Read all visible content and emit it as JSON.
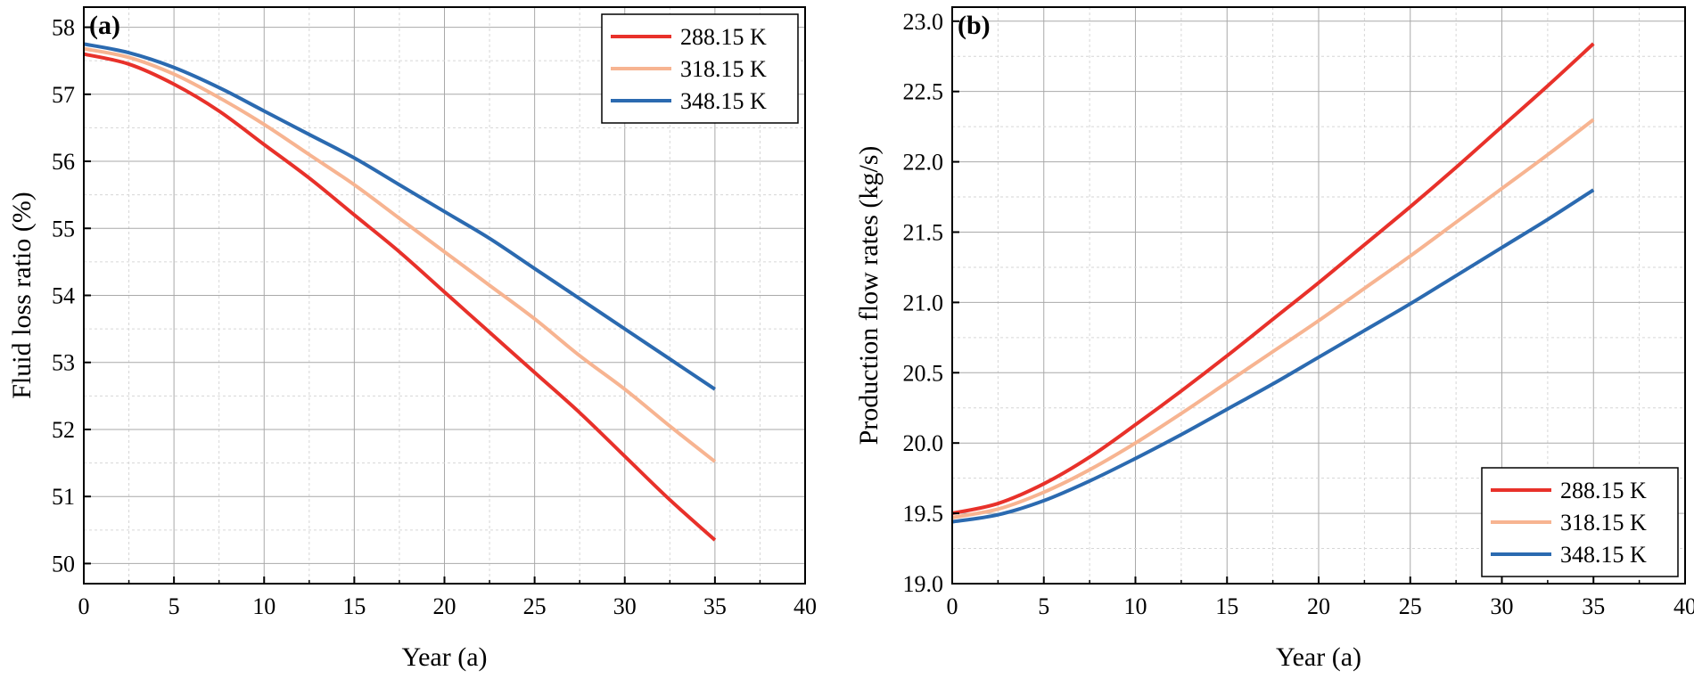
{
  "chart_data": [
    {
      "type": "line",
      "panel_label": "(a)",
      "xlabel": "Year (a)",
      "ylabel": "Fluid loss ratio (%)",
      "xlim": [
        0,
        40
      ],
      "ylim": [
        49.7,
        58.3
      ],
      "xticks": [
        0,
        5,
        10,
        15,
        20,
        25,
        30,
        35,
        40
      ],
      "yticks": [
        50,
        51,
        52,
        53,
        54,
        55,
        56,
        57,
        58
      ],
      "ytick_labels": [
        "50",
        "51",
        "52",
        "53",
        "54",
        "55",
        "56",
        "57",
        "58"
      ],
      "grid": true,
      "legend_position": "top-right",
      "x": [
        0,
        2.5,
        5,
        7.5,
        10,
        12.5,
        15,
        17.5,
        20,
        22.5,
        25,
        27.5,
        30,
        32.5,
        35
      ],
      "series": [
        {
          "name": "288.15 K",
          "color": "#e8312a",
          "values": [
            57.6,
            57.45,
            57.15,
            56.75,
            56.25,
            55.75,
            55.2,
            54.65,
            54.05,
            53.45,
            52.85,
            52.25,
            51.6,
            50.95,
            50.35
          ]
        },
        {
          "name": "318.15 K",
          "color": "#f7b491",
          "values": [
            57.68,
            57.55,
            57.3,
            56.95,
            56.55,
            56.1,
            55.65,
            55.15,
            54.65,
            54.15,
            53.65,
            53.1,
            52.6,
            52.05,
            51.52
          ]
        },
        {
          "name": "348.15 K",
          "color": "#2b6ab0",
          "values": [
            57.75,
            57.62,
            57.4,
            57.1,
            56.75,
            56.4,
            56.05,
            55.65,
            55.25,
            54.85,
            54.4,
            53.95,
            53.5,
            53.05,
            52.6
          ]
        }
      ]
    },
    {
      "type": "line",
      "panel_label": "(b)",
      "xlabel": "Year (a)",
      "ylabel": "Production flow rates (kg/s)",
      "xlim": [
        0,
        40
      ],
      "ylim": [
        19.0,
        23.1
      ],
      "xticks": [
        0,
        5,
        10,
        15,
        20,
        25,
        30,
        35,
        40
      ],
      "yticks": [
        19.0,
        19.5,
        20.0,
        20.5,
        21.0,
        21.5,
        22.0,
        22.5,
        23.0
      ],
      "ytick_labels": [
        "19.0",
        "19.5",
        "20.0",
        "20.5",
        "21.0",
        "21.5",
        "22.0",
        "22.5",
        "23.0"
      ],
      "grid": true,
      "legend_position": "bottom-right",
      "x": [
        0,
        2.5,
        5,
        7.5,
        10,
        12.5,
        15,
        17.5,
        20,
        22.5,
        25,
        27.5,
        30,
        32.5,
        35
      ],
      "series": [
        {
          "name": "288.15 K",
          "color": "#e8312a",
          "values": [
            19.5,
            19.57,
            19.71,
            19.9,
            20.13,
            20.37,
            20.62,
            20.88,
            21.14,
            21.41,
            21.68,
            21.96,
            22.25,
            22.54,
            22.84
          ]
        },
        {
          "name": "318.15 K",
          "color": "#f7b491",
          "values": [
            19.47,
            19.53,
            19.65,
            19.81,
            20.0,
            20.21,
            20.43,
            20.65,
            20.87,
            21.1,
            21.33,
            21.57,
            21.81,
            22.05,
            22.3
          ]
        },
        {
          "name": "348.15 K",
          "color": "#2b6ab0",
          "values": [
            19.44,
            19.49,
            19.59,
            19.73,
            19.89,
            20.06,
            20.24,
            20.42,
            20.61,
            20.8,
            20.99,
            21.19,
            21.39,
            21.59,
            21.8
          ]
        }
      ]
    }
  ]
}
